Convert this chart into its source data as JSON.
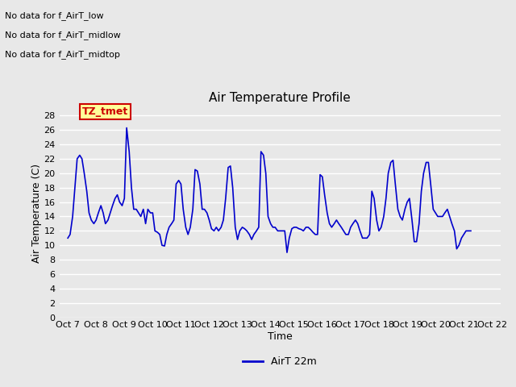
{
  "title": "Air Temperature Profile",
  "xlabel": "Time",
  "ylabel": "Air Temperature (C)",
  "legend_label": "AirT 22m",
  "no_data_texts": [
    "No data for f_AirT_low",
    "No data for f_AirT_midlow",
    "No data for f_AirT_midtop"
  ],
  "tz_label": "TZ_tmet",
  "ylim": [
    0,
    29
  ],
  "yticks": [
    0,
    2,
    4,
    6,
    8,
    10,
    12,
    14,
    16,
    18,
    20,
    22,
    24,
    26,
    28
  ],
  "xtick_labels": [
    "Oct 7",
    "Oct 8",
    "Oct 9",
    "Oct 10",
    "Oct 11",
    "Oct 12",
    "Oct 13",
    "Oct 14",
    "Oct 15",
    "Oct 16",
    "Oct 17",
    "Oct 18",
    "Oct 19",
    "Oct 20",
    "Oct 21",
    "Oct 22"
  ],
  "line_color": "#0000cc",
  "bg_color": "#e8e8e8",
  "plot_bg": "#e8e8e8",
  "grid_color": "#ffffff",
  "x_values": [
    0.0,
    0.08,
    0.17,
    0.25,
    0.33,
    0.42,
    0.5,
    0.58,
    0.67,
    0.75,
    0.83,
    0.92,
    1.0,
    1.08,
    1.17,
    1.25,
    1.33,
    1.42,
    1.5,
    1.58,
    1.67,
    1.75,
    1.83,
    1.92,
    2.0,
    2.08,
    2.17,
    2.25,
    2.33,
    2.42,
    2.5,
    2.58,
    2.67,
    2.75,
    2.83,
    2.92,
    3.0,
    3.08,
    3.17,
    3.25,
    3.33,
    3.42,
    3.5,
    3.58,
    3.67,
    3.75,
    3.83,
    3.92,
    4.0,
    4.08,
    4.17,
    4.25,
    4.33,
    4.42,
    4.5,
    4.58,
    4.67,
    4.75,
    4.83,
    4.92,
    5.0,
    5.08,
    5.17,
    5.25,
    5.33,
    5.42,
    5.5,
    5.58,
    5.67,
    5.75,
    5.83,
    5.92,
    6.0,
    6.08,
    6.17,
    6.25,
    6.33,
    6.42,
    6.5,
    6.58,
    6.67,
    6.75,
    6.83,
    6.92,
    7.0,
    7.08,
    7.17,
    7.25,
    7.33,
    7.42,
    7.5,
    7.58,
    7.67,
    7.75,
    7.83,
    7.92,
    8.0,
    8.08,
    8.17,
    8.25,
    8.33,
    8.42,
    8.5,
    8.58,
    8.67,
    8.75,
    8.83,
    8.92,
    9.0,
    9.08,
    9.17,
    9.25,
    9.33,
    9.42,
    9.5,
    9.58,
    9.67,
    9.75,
    9.83,
    9.92,
    10.0,
    10.08,
    10.17,
    10.25,
    10.33,
    10.42,
    10.5,
    10.58,
    10.67,
    10.75,
    10.83,
    10.92,
    11.0,
    11.08,
    11.17,
    11.25,
    11.33,
    11.42,
    11.5,
    11.58,
    11.67,
    11.75,
    11.83,
    11.92,
    12.0,
    12.08,
    12.17,
    12.25,
    12.33,
    12.42,
    12.5,
    12.58,
    12.67,
    12.75,
    12.83,
    12.92,
    13.0,
    13.08,
    13.17,
    13.25,
    13.33,
    13.42,
    13.5,
    13.58,
    13.67,
    13.75,
    13.83,
    13.92,
    14.0,
    14.08,
    14.17,
    14.25
  ],
  "y_values": [
    11.0,
    11.5,
    14.0,
    18.0,
    22.0,
    22.5,
    22.0,
    20.0,
    17.5,
    14.5,
    13.5,
    13.0,
    13.5,
    14.5,
    15.5,
    14.5,
    13.0,
    13.5,
    14.5,
    15.5,
    16.5,
    17.0,
    16.0,
    15.5,
    16.5,
    26.3,
    23.0,
    18.0,
    15.0,
    15.0,
    14.5,
    14.0,
    15.0,
    13.0,
    15.0,
    14.5,
    14.5,
    12.0,
    11.8,
    11.5,
    10.0,
    9.9,
    11.5,
    12.5,
    13.0,
    13.5,
    18.5,
    19.0,
    18.5,
    15.0,
    12.5,
    11.5,
    12.5,
    15.0,
    20.5,
    20.3,
    18.5,
    15.0,
    15.0,
    14.5,
    13.5,
    12.3,
    12.0,
    12.5,
    12.0,
    12.5,
    13.5,
    16.5,
    20.8,
    21.0,
    18.0,
    12.5,
    10.8,
    12.0,
    12.5,
    12.3,
    12.0,
    11.5,
    10.8,
    11.5,
    12.0,
    12.5,
    23.0,
    22.5,
    20.0,
    14.0,
    13.0,
    12.5,
    12.5,
    12.0,
    12.0,
    12.0,
    12.0,
    9.0,
    11.0,
    12.3,
    12.5,
    12.5,
    12.3,
    12.2,
    12.0,
    12.5,
    12.5,
    12.2,
    11.8,
    11.5,
    11.5,
    19.8,
    19.5,
    17.0,
    14.5,
    13.0,
    12.5,
    13.0,
    13.5,
    13.0,
    12.5,
    12.0,
    11.5,
    11.5,
    12.5,
    13.0,
    13.5,
    13.0,
    12.0,
    11.0,
    11.0,
    11.0,
    11.5,
    17.5,
    16.5,
    13.5,
    12.0,
    12.5,
    14.0,
    16.5,
    20.0,
    21.5,
    21.8,
    18.5,
    15.0,
    14.0,
    13.5,
    15.0,
    16.0,
    16.5,
    13.5,
    10.5,
    10.5,
    13.0,
    17.5,
    20.0,
    21.5,
    21.5,
    18.5,
    15.0,
    14.5,
    14.0,
    14.0,
    14.0,
    14.5,
    15.0,
    14.0,
    13.0,
    12.0,
    9.5,
    10.0,
    11.0,
    11.5,
    12.0,
    12.0,
    12.0
  ]
}
